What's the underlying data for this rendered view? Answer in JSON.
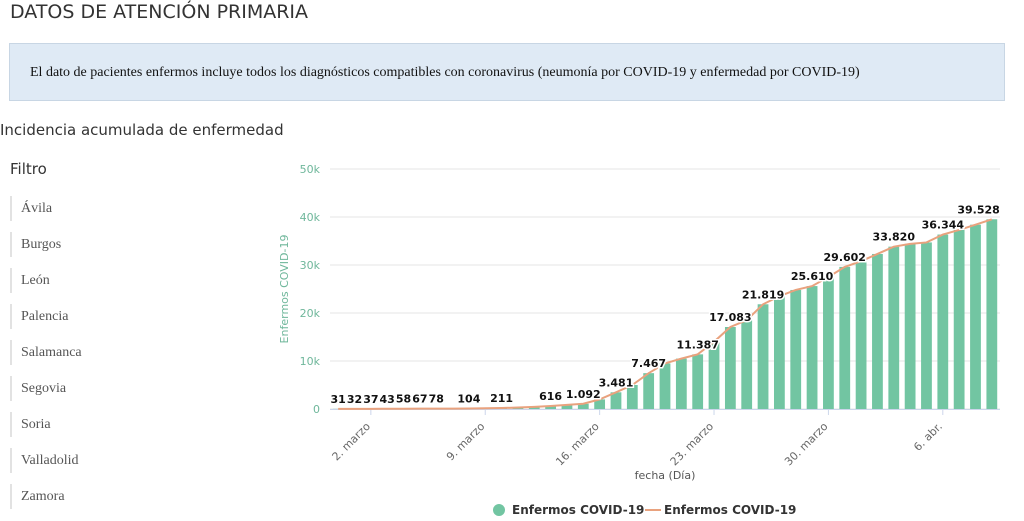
{
  "header": {
    "title": "DATOS DE ATENCIÓN PRIMARIA"
  },
  "notice": "El dato de pacientes enfermos incluye todos los diagnósticos compatibles con coronavirus (neumonía por COVID-19 y enfermedad por COVID-19)",
  "section_title": "Incidencia acumulada de enfermedad",
  "filter": {
    "title": "Filtro",
    "items": [
      "Ávila",
      "Burgos",
      "León",
      "Palencia",
      "Salamanca",
      "Segovia",
      "Soria",
      "Valladolid",
      "Zamora"
    ]
  },
  "chart_data": {
    "type": "bar",
    "x_label": "fecha (Día)",
    "y_label": "Enfermos COVID-19",
    "categories": [
      null,
      null,
      "2. marzo",
      null,
      null,
      null,
      null,
      null,
      null,
      "9. marzo",
      null,
      null,
      null,
      null,
      null,
      null,
      "16. marzo",
      null,
      null,
      null,
      null,
      null,
      null,
      "23. marzo",
      null,
      null,
      null,
      null,
      null,
      null,
      "30. marzo",
      null,
      null,
      null,
      null,
      null,
      null,
      "6. abr.",
      null,
      null,
      null
    ],
    "ylim": [
      0,
      50000
    ],
    "yticks": [
      0,
      {
        "value": 10000,
        "label": "10k"
      },
      {
        "value": 20000,
        "label": "20k"
      },
      {
        "value": 30000,
        "label": "30k"
      },
      {
        "value": 40000,
        "label": "40k"
      },
      {
        "value": 50000,
        "label": "50k"
      }
    ],
    "grid": true,
    "series": [
      {
        "name": "Enfermos COVID-19",
        "type": "bar",
        "color": "#72c5a2",
        "values": [
          31,
          32,
          37,
          43,
          58,
          67,
          78,
          90,
          104,
          150,
          211,
          300,
          450,
          616,
          850,
          1092,
          2000,
          3481,
          5000,
          7467,
          9500,
          10500,
          11387,
          14000,
          17083,
          18500,
          21819,
          23500,
          24800,
          25610,
          27500,
          29602,
          30800,
          32300,
          33820,
          34400,
          34700,
          36344,
          37300,
          38400,
          39528
        ],
        "value_labels": [
          "31",
          "32",
          "37",
          "43",
          "58",
          "67",
          "78",
          null,
          "104",
          null,
          "211",
          null,
          null,
          "616",
          null,
          "1.092",
          null,
          "3.481",
          null,
          "7.467",
          null,
          null,
          "11.387",
          null,
          "17.083",
          null,
          "21.819",
          null,
          null,
          "25.610",
          null,
          "29.602",
          null,
          null,
          "33.820",
          null,
          null,
          "36.344",
          null,
          null,
          "39.528"
        ]
      },
      {
        "name": "Enfermos COVID-19",
        "type": "line",
        "color": "#e9a27e",
        "values": [
          31,
          32,
          37,
          43,
          58,
          67,
          78,
          90,
          104,
          150,
          211,
          300,
          450,
          616,
          850,
          1092,
          2000,
          3481,
          5000,
          7467,
          9500,
          10500,
          11387,
          14000,
          17083,
          18500,
          21819,
          23500,
          24800,
          25610,
          27500,
          29602,
          30800,
          32300,
          33820,
          34400,
          34700,
          36344,
          37300,
          38400,
          39528
        ]
      }
    ]
  }
}
